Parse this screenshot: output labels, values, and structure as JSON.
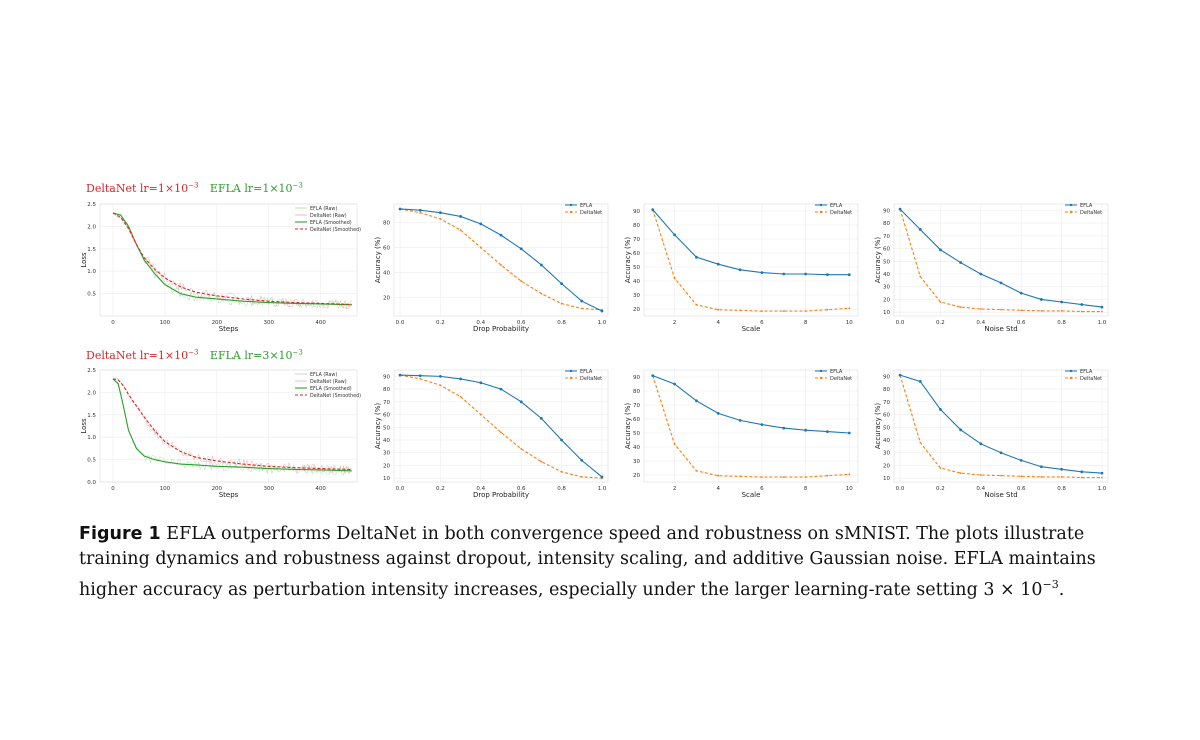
{
  "row_labels": [
    {
      "delta": "DeltaNet lr=1×10",
      "delta_exp": "−3",
      "efla": "EFLA lr=1×10",
      "efla_exp": "−3"
    },
    {
      "delta": "DeltaNet lr=1×10",
      "delta_exp": "−3",
      "efla": "EFLA lr=3×10",
      "efla_exp": "−3"
    }
  ],
  "caption": {
    "label": "Figure 1",
    "text": "EFLA outperforms DeltaNet in both convergence speed and robustness on sMNIST. The plots illustrate training dynamics and robustness against dropout, intensity scaling, and additive Gaussian noise. EFLA maintains higher accuracy as perturbation intensity increases, especially under the larger learning-rate setting ",
    "math": "3 × 10",
    "math_exp": "−3",
    "end": "."
  },
  "colors": {
    "efla_blue": "#1f77b4",
    "deltanet_orange": "#ff7f0e",
    "efla_green": "#2ca02c",
    "deltanet_red": "#d62728",
    "label_red": "#d62728",
    "label_green": "#2ca02c"
  },
  "chart_data": [
    {
      "type": "line",
      "xlabel": "Steps",
      "ylabel": "Loss",
      "xlim": [
        -25,
        470
      ],
      "ylim": [
        0,
        2.5
      ],
      "xticks": [
        0,
        100,
        200,
        300,
        400
      ],
      "yticks": [
        0.5,
        1.0,
        1.5,
        2.0,
        2.5
      ],
      "legend": [
        "EFLA (Raw)",
        "DeltaNet (Raw)",
        "EFLA (Smoothed)",
        "DeltaNet (Smoothed)"
      ],
      "series": [
        {
          "name": "EFLA (Smoothed)",
          "x": [
            0,
            15,
            30,
            45,
            60,
            80,
            100,
            130,
            160,
            200,
            250,
            300,
            350,
            400,
            460
          ],
          "y": [
            2.3,
            2.25,
            2.0,
            1.6,
            1.25,
            0.95,
            0.7,
            0.5,
            0.42,
            0.38,
            0.33,
            0.3,
            0.28,
            0.27,
            0.25
          ]
        },
        {
          "name": "DeltaNet (Smoothed)",
          "x": [
            0,
            15,
            30,
            45,
            60,
            80,
            100,
            130,
            160,
            200,
            250,
            300,
            350,
            400,
            460
          ],
          "y": [
            2.3,
            2.2,
            1.95,
            1.6,
            1.3,
            1.05,
            0.85,
            0.65,
            0.53,
            0.45,
            0.38,
            0.33,
            0.3,
            0.28,
            0.26
          ]
        }
      ]
    },
    {
      "type": "line",
      "xlabel": "Drop Probability",
      "ylabel": "Accuracy (%)",
      "xlim": [
        -0.03,
        1.03
      ],
      "ylim": [
        5,
        95
      ],
      "xticks": [
        0.0,
        0.2,
        0.4,
        0.6,
        0.8,
        1.0
      ],
      "yticks": [
        20,
        40,
        60,
        80
      ],
      "x": [
        0.0,
        0.1,
        0.2,
        0.3,
        0.4,
        0.5,
        0.6,
        0.7,
        0.8,
        0.9,
        1.0
      ],
      "series": [
        {
          "name": "EFLA",
          "values": [
            91,
            90,
            88,
            85,
            79,
            70,
            59,
            46,
            31,
            17,
            9
          ]
        },
        {
          "name": "DeltaNet",
          "values": [
            91,
            88,
            83,
            74,
            60,
            46,
            33,
            23,
            15,
            11,
            10
          ]
        }
      ]
    },
    {
      "type": "line",
      "xlabel": "Scale",
      "ylabel": "Accuracy (%)",
      "xlim": [
        0.6,
        10.4
      ],
      "ylim": [
        15,
        95
      ],
      "xticks": [
        2,
        4,
        6,
        8,
        10
      ],
      "yticks": [
        20,
        30,
        40,
        50,
        60,
        70,
        80,
        90
      ],
      "x": [
        1,
        2,
        3,
        4,
        5,
        6,
        7,
        8,
        9,
        10
      ],
      "series": [
        {
          "name": "EFLA",
          "values": [
            91,
            73,
            57,
            52,
            48,
            46,
            45,
            45,
            44.5,
            44.5
          ]
        },
        {
          "name": "DeltaNet",
          "values": [
            91,
            42,
            23,
            19.5,
            19,
            18.5,
            18.5,
            18.5,
            19.5,
            20.5
          ]
        }
      ]
    },
    {
      "type": "line",
      "xlabel": "Noise Std",
      "ylabel": "Accuracy (%)",
      "xlim": [
        -0.03,
        1.03
      ],
      "ylim": [
        7,
        95
      ],
      "xticks": [
        0.0,
        0.2,
        0.4,
        0.6,
        0.8,
        1.0
      ],
      "yticks": [
        10,
        20,
        30,
        40,
        50,
        60,
        70,
        80,
        90
      ],
      "x": [
        0.0,
        0.1,
        0.2,
        0.3,
        0.4,
        0.5,
        0.6,
        0.7,
        0.8,
        0.9,
        1.0
      ],
      "series": [
        {
          "name": "EFLA",
          "values": [
            91,
            75,
            59,
            49,
            40,
            33,
            25,
            20,
            18,
            16,
            14
          ]
        },
        {
          "name": "DeltaNet",
          "values": [
            91,
            38,
            18,
            14,
            12.5,
            12,
            11.5,
            11,
            11,
            10.5,
            10.5
          ]
        }
      ]
    },
    {
      "type": "line",
      "xlabel": "Steps",
      "ylabel": "Loss",
      "xlim": [
        -25,
        470
      ],
      "ylim": [
        0,
        2.5
      ],
      "xticks": [
        0,
        100,
        200,
        300,
        400
      ],
      "yticks": [
        0.0,
        0.5,
        1.0,
        1.5,
        2.0,
        2.5
      ],
      "legend": [
        "EFLA (Raw)",
        "DeltaNet (Raw)",
        "EFLA (Smoothed)",
        "DeltaNet (Smoothed)"
      ],
      "series": [
        {
          "name": "EFLA (Smoothed)",
          "x": [
            0,
            10,
            20,
            30,
            45,
            60,
            80,
            100,
            130,
            160,
            200,
            250,
            300,
            350,
            400,
            460
          ],
          "y": [
            2.3,
            2.2,
            1.7,
            1.15,
            0.75,
            0.58,
            0.5,
            0.45,
            0.4,
            0.38,
            0.35,
            0.33,
            0.3,
            0.28,
            0.27,
            0.25
          ]
        },
        {
          "name": "DeltaNet (Smoothed)",
          "x": [
            0,
            10,
            20,
            30,
            45,
            60,
            80,
            100,
            130,
            160,
            200,
            250,
            300,
            350,
            400,
            460
          ],
          "y": [
            2.3,
            2.28,
            2.15,
            1.95,
            1.7,
            1.45,
            1.15,
            0.9,
            0.68,
            0.55,
            0.47,
            0.4,
            0.35,
            0.32,
            0.3,
            0.28
          ]
        }
      ]
    },
    {
      "type": "line",
      "xlabel": "Drop Probability",
      "ylabel": "Accuracy (%)",
      "xlim": [
        -0.03,
        1.03
      ],
      "ylim": [
        7,
        95
      ],
      "xticks": [
        0.0,
        0.2,
        0.4,
        0.6,
        0.8,
        1.0
      ],
      "yticks": [
        10,
        20,
        30,
        40,
        50,
        60,
        70,
        80,
        90
      ],
      "x": [
        0.0,
        0.1,
        0.2,
        0.3,
        0.4,
        0.5,
        0.6,
        0.7,
        0.8,
        0.9,
        1.0
      ],
      "series": [
        {
          "name": "EFLA",
          "values": [
            91,
            90.5,
            90,
            88,
            85,
            80,
            70,
            57,
            40,
            24,
            11
          ]
        },
        {
          "name": "DeltaNet",
          "values": [
            91,
            88,
            83,
            74,
            60,
            46,
            33,
            23,
            15,
            11,
            10
          ]
        }
      ]
    },
    {
      "type": "line",
      "xlabel": "Scale",
      "ylabel": "Accuracy (%)",
      "xlim": [
        0.6,
        10.4
      ],
      "ylim": [
        15,
        95
      ],
      "xticks": [
        2,
        4,
        6,
        8,
        10
      ],
      "yticks": [
        20,
        30,
        40,
        50,
        60,
        70,
        80,
        90
      ],
      "x": [
        1,
        2,
        3,
        4,
        5,
        6,
        7,
        8,
        9,
        10
      ],
      "series": [
        {
          "name": "EFLA",
          "values": [
            91,
            85,
            73,
            64,
            59,
            56,
            53.5,
            52,
            51,
            50
          ]
        },
        {
          "name": "DeltaNet",
          "values": [
            91,
            42,
            23,
            19.5,
            19,
            18.5,
            18.5,
            18.5,
            19.5,
            20.5
          ]
        }
      ]
    },
    {
      "type": "line",
      "xlabel": "Noise Std",
      "ylabel": "Accuracy (%)",
      "xlim": [
        -0.03,
        1.03
      ],
      "ylim": [
        7,
        95
      ],
      "xticks": [
        0.0,
        0.2,
        0.4,
        0.6,
        0.8,
        1.0
      ],
      "yticks": [
        10,
        20,
        30,
        40,
        50,
        60,
        70,
        80,
        90
      ],
      "x": [
        0.0,
        0.1,
        0.2,
        0.3,
        0.4,
        0.5,
        0.6,
        0.7,
        0.8,
        0.9,
        1.0
      ],
      "series": [
        {
          "name": "EFLA",
          "values": [
            91,
            86,
            64,
            48,
            37,
            30,
            24,
            19,
            17,
            15,
            14
          ]
        },
        {
          "name": "DeltaNet",
          "values": [
            91,
            38,
            18,
            14,
            12.5,
            12,
            11.5,
            11,
            11,
            10.5,
            10.5
          ]
        }
      ]
    }
  ]
}
